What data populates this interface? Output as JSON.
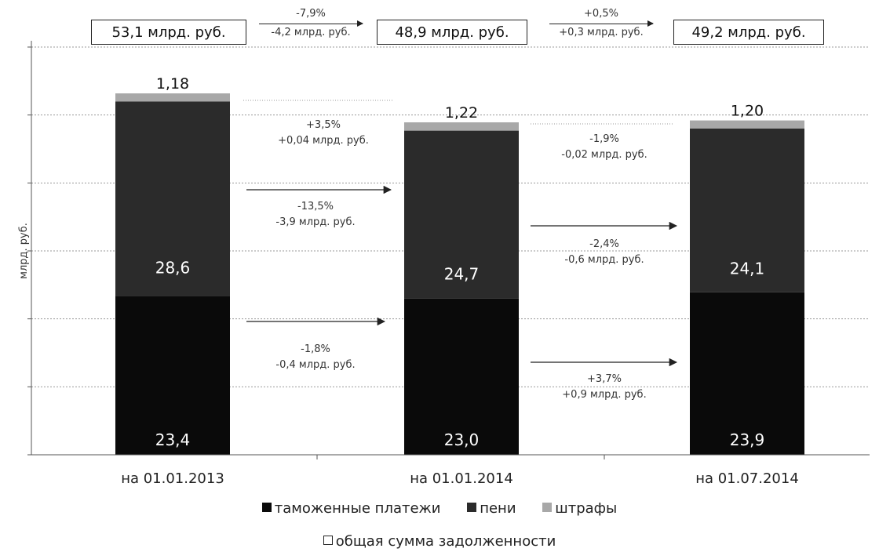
{
  "chart_data": {
    "type": "bar",
    "stacked": true,
    "categories": [
      "на 01.01.2013",
      "на 01.01.2014",
      "на 01.07.2014"
    ],
    "series": [
      {
        "name": "таможенные платежи",
        "values": [
          23.4,
          23.0,
          23.9
        ],
        "labels": [
          "23,4",
          "23,0",
          "23,9"
        ],
        "color": "#0a0a0a"
      },
      {
        "name": "пени",
        "values": [
          28.6,
          24.7,
          24.1
        ],
        "labels": [
          "28,6",
          "24,7",
          "24,1"
        ],
        "color": "#2b2b2b"
      },
      {
        "name": "штрафы",
        "values": [
          1.18,
          1.22,
          1.2
        ],
        "labels": [
          "1,18",
          "1,22",
          "1,20"
        ],
        "color": "#a8a8a8"
      }
    ],
    "ylabel": "млрд. руб.",
    "ylim": [
      0,
      60
    ],
    "yticks": [
      0,
      10,
      20,
      30,
      40,
      50,
      60
    ],
    "grid": true,
    "legend_position": "bottom",
    "totals": {
      "values": [
        "53,1 млрд. руб.",
        "48,9 млрд. руб.",
        "49,2 млрд. руб."
      ],
      "legend_label": "общая сумма задолженности",
      "changes": [
        {
          "pct": "-7,9%",
          "abs": "-4,2 млрд. руб."
        },
        {
          "pct": "+0,5%",
          "abs": "+0,3 млрд. руб."
        }
      ]
    },
    "changes": [
      {
        "fines": {
          "pct": "+3,5%",
          "abs": "+0,04 млрд. руб."
        },
        "penalties": {
          "pct": "-13,5%",
          "abs": "-3,9 млрд. руб."
        },
        "payments": {
          "pct": "-1,8%",
          "abs": "-0,4 млрд. руб."
        }
      },
      {
        "fines": {
          "pct": "-1,9%",
          "abs": "-0,02 млрд. руб."
        },
        "penalties": {
          "pct": "-2,4%",
          "abs": "-0,6 млрд. руб."
        },
        "payments": {
          "pct": "+3,7%",
          "abs": "+0,9 млрд. руб."
        }
      }
    ]
  }
}
